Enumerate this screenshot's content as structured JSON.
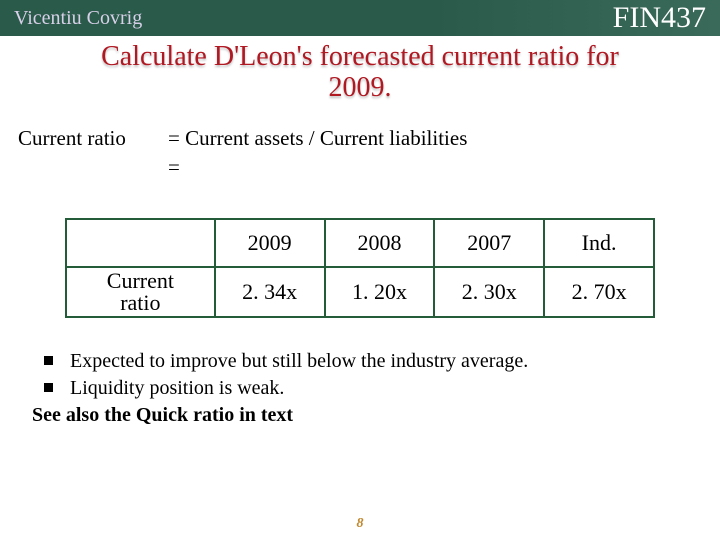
{
  "header": {
    "author": "Vicentiu Covrig",
    "course": "FIN437",
    "bar_background": "#2a5a4a",
    "author_color": "#d8d0e8",
    "course_color": "#ffffff"
  },
  "title": {
    "line1": "Calculate D'Leon's forecasted current ratio for",
    "line2": "2009.",
    "color": "#b01822",
    "fontsize": 28
  },
  "formula": {
    "label": "Current ratio",
    "line1": "= Current assets / Current liabilities",
    "line2": "=",
    "fontsize": 21
  },
  "table": {
    "type": "table",
    "border_color": "#245c3a",
    "fontsize": 22,
    "columns": [
      "",
      "2009",
      "2008",
      "2007",
      "Ind."
    ],
    "rows": [
      {
        "label": "Current ratio",
        "cells": [
          "2. 34x",
          "1. 20x",
          "2. 30x",
          "2. 70x"
        ]
      }
    ]
  },
  "bullets": {
    "items": [
      "Expected to improve but still below the industry average.",
      "Liquidity position is weak."
    ],
    "see_also": "See also the Quick ratio in text",
    "fontsize": 20,
    "marker_color": "#000000"
  },
  "page_number": {
    "value": "8",
    "color": "#c08830"
  }
}
